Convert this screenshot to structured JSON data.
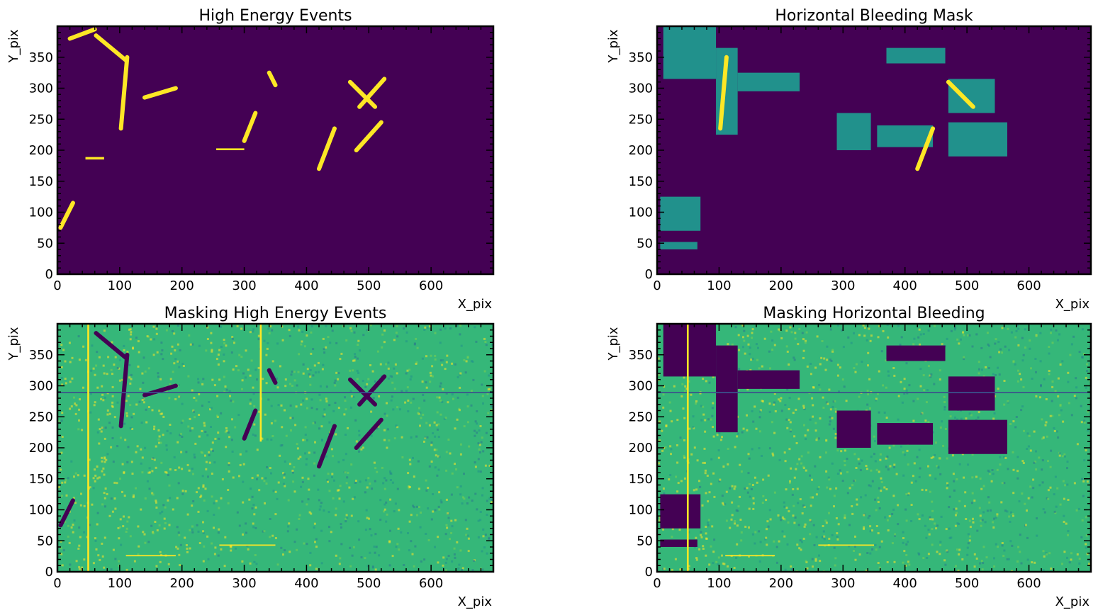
{
  "colors": {
    "viridis_dark": "#440154",
    "viridis_teal": "#21918c",
    "viridis_green": "#35b779",
    "viridis_yellow": "#fde725",
    "axes": "#000000"
  },
  "chart_data": [
    {
      "type": "heatmap",
      "title": "High Energy Events",
      "xlabel": "X_pix",
      "ylabel": "Y_pix",
      "xlim": [
        0,
        700
      ],
      "ylim": [
        0,
        400
      ],
      "xticks": [
        "0",
        "100",
        "200",
        "300",
        "400",
        "500",
        "600"
      ],
      "yticks": [
        "0",
        "50",
        "100",
        "150",
        "200",
        "250",
        "300",
        "350"
      ],
      "colormap": "viridis",
      "background": "#440154",
      "features": [
        {
          "kind": "line",
          "x1": 20,
          "y1": 380,
          "x2": 60,
          "y2": 395,
          "color": "#fde725"
        },
        {
          "kind": "line",
          "x1": 62,
          "y1": 385,
          "x2": 110,
          "y2": 345,
          "color": "#fde725"
        },
        {
          "kind": "line",
          "x1": 102,
          "y1": 235,
          "x2": 112,
          "y2": 350,
          "color": "#fde725"
        },
        {
          "kind": "line",
          "x1": 140,
          "y1": 285,
          "x2": 190,
          "y2": 300,
          "color": "#fde725"
        },
        {
          "kind": "line",
          "x1": 300,
          "y1": 215,
          "x2": 318,
          "y2": 260,
          "color": "#fde725"
        },
        {
          "kind": "line",
          "x1": 340,
          "y1": 325,
          "x2": 350,
          "y2": 305,
          "color": "#fde725"
        },
        {
          "kind": "line",
          "x1": 420,
          "y1": 170,
          "x2": 445,
          "y2": 235,
          "color": "#fde725"
        },
        {
          "kind": "line",
          "x1": 470,
          "y1": 310,
          "x2": 510,
          "y2": 270,
          "color": "#fde725"
        },
        {
          "kind": "line",
          "x1": 485,
          "y1": 270,
          "x2": 525,
          "y2": 315,
          "color": "#fde725"
        },
        {
          "kind": "line",
          "x1": 480,
          "y1": 200,
          "x2": 520,
          "y2": 245,
          "color": "#fde725"
        },
        {
          "kind": "line",
          "x1": 5,
          "y1": 75,
          "x2": 25,
          "y2": 115,
          "color": "#fde725"
        },
        {
          "kind": "rect",
          "x": 45,
          "y": 185,
          "w": 30,
          "h": 4,
          "color": "#fde725"
        },
        {
          "kind": "rect",
          "x": 255,
          "y": 200,
          "w": 45,
          "h": 3,
          "color": "#fde725"
        }
      ]
    },
    {
      "type": "heatmap",
      "title": "Horizontal Bleeding Mask",
      "xlabel": "X_pix",
      "ylabel": "Y_pix",
      "xlim": [
        0,
        700
      ],
      "ylim": [
        0,
        400
      ],
      "xticks": [
        "0",
        "100",
        "200",
        "300",
        "400",
        "500",
        "600"
      ],
      "yticks": [
        "0",
        "50",
        "100",
        "150",
        "200",
        "250",
        "300",
        "350"
      ],
      "colormap": "viridis",
      "background": "#440154",
      "features": [
        {
          "kind": "rect",
          "x": 10,
          "y": 315,
          "w": 85,
          "h": 85,
          "color": "#21918c"
        },
        {
          "kind": "rect",
          "x": 95,
          "y": 225,
          "w": 35,
          "h": 140,
          "color": "#21918c"
        },
        {
          "kind": "rect",
          "x": 130,
          "y": 295,
          "w": 100,
          "h": 30,
          "color": "#21918c"
        },
        {
          "kind": "rect",
          "x": 5,
          "y": 70,
          "w": 65,
          "h": 55,
          "color": "#21918c"
        },
        {
          "kind": "rect",
          "x": 5,
          "y": 40,
          "w": 60,
          "h": 12,
          "color": "#21918c"
        },
        {
          "kind": "rect",
          "x": 370,
          "y": 340,
          "w": 95,
          "h": 25,
          "color": "#21918c"
        },
        {
          "kind": "rect",
          "x": 355,
          "y": 205,
          "w": 90,
          "h": 35,
          "color": "#21918c"
        },
        {
          "kind": "rect",
          "x": 470,
          "y": 260,
          "w": 75,
          "h": 55,
          "color": "#21918c"
        },
        {
          "kind": "rect",
          "x": 470,
          "y": 190,
          "w": 95,
          "h": 55,
          "color": "#21918c"
        },
        {
          "kind": "rect",
          "x": 290,
          "y": 200,
          "w": 55,
          "h": 60,
          "color": "#21918c"
        },
        {
          "kind": "line",
          "x1": 102,
          "y1": 235,
          "x2": 112,
          "y2": 350,
          "color": "#fde725"
        },
        {
          "kind": "line",
          "x1": 470,
          "y1": 310,
          "x2": 510,
          "y2": 270,
          "color": "#fde725"
        },
        {
          "kind": "line",
          "x1": 420,
          "y1": 170,
          "x2": 445,
          "y2": 235,
          "color": "#fde725"
        }
      ]
    },
    {
      "type": "heatmap",
      "title": "Masking High Energy Events",
      "xlabel": "X_pix",
      "ylabel": "Y_pix",
      "xlim": [
        0,
        700
      ],
      "ylim": [
        0,
        400
      ],
      "xticks": [
        "0",
        "100",
        "200",
        "300",
        "400",
        "500",
        "600"
      ],
      "yticks": [
        "0",
        "50",
        "100",
        "150",
        "200",
        "250",
        "300",
        "350"
      ],
      "colormap": "viridis",
      "background": "#35b779",
      "features": [
        {
          "kind": "line",
          "x1": 62,
          "y1": 385,
          "x2": 110,
          "y2": 345,
          "color": "#440154"
        },
        {
          "kind": "line",
          "x1": 102,
          "y1": 235,
          "x2": 112,
          "y2": 350,
          "color": "#440154"
        },
        {
          "kind": "line",
          "x1": 140,
          "y1": 285,
          "x2": 190,
          "y2": 300,
          "color": "#440154"
        },
        {
          "kind": "line",
          "x1": 300,
          "y1": 215,
          "x2": 318,
          "y2": 260,
          "color": "#440154"
        },
        {
          "kind": "line",
          "x1": 340,
          "y1": 325,
          "x2": 350,
          "y2": 305,
          "color": "#440154"
        },
        {
          "kind": "line",
          "x1": 420,
          "y1": 170,
          "x2": 445,
          "y2": 235,
          "color": "#440154"
        },
        {
          "kind": "line",
          "x1": 470,
          "y1": 310,
          "x2": 510,
          "y2": 270,
          "color": "#440154"
        },
        {
          "kind": "line",
          "x1": 485,
          "y1": 270,
          "x2": 525,
          "y2": 315,
          "color": "#440154"
        },
        {
          "kind": "line",
          "x1": 480,
          "y1": 200,
          "x2": 520,
          "y2": 245,
          "color": "#440154"
        },
        {
          "kind": "line",
          "x1": 5,
          "y1": 75,
          "x2": 25,
          "y2": 115,
          "color": "#440154"
        },
        {
          "kind": "rect",
          "x": 0,
          "y": 288,
          "w": 700,
          "h": 2,
          "color": "#3b528b"
        },
        {
          "kind": "rect",
          "x": 48,
          "y": 0,
          "w": 3,
          "h": 400,
          "color": "#fde725"
        },
        {
          "kind": "rect",
          "x": 325,
          "y": 210,
          "w": 3,
          "h": 190,
          "color": "#fde725"
        },
        {
          "kind": "rect",
          "x": 260,
          "y": 42,
          "w": 90,
          "h": 2,
          "color": "#fde725"
        },
        {
          "kind": "rect",
          "x": 110,
          "y": 25,
          "w": 80,
          "h": 2,
          "color": "#fde725"
        }
      ]
    },
    {
      "type": "heatmap",
      "title": "Masking Horizontal Bleeding",
      "xlabel": "X_pix",
      "ylabel": "Y_pix",
      "xlim": [
        0,
        700
      ],
      "ylim": [
        0,
        400
      ],
      "xticks": [
        "0",
        "100",
        "200",
        "300",
        "400",
        "500",
        "600"
      ],
      "yticks": [
        "0",
        "50",
        "100",
        "150",
        "200",
        "250",
        "300",
        "350"
      ],
      "colormap": "viridis",
      "background": "#35b779",
      "features": [
        {
          "kind": "rect",
          "x": 10,
          "y": 315,
          "w": 85,
          "h": 85,
          "color": "#440154"
        },
        {
          "kind": "rect",
          "x": 95,
          "y": 225,
          "w": 35,
          "h": 140,
          "color": "#440154"
        },
        {
          "kind": "rect",
          "x": 130,
          "y": 295,
          "w": 100,
          "h": 30,
          "color": "#440154"
        },
        {
          "kind": "rect",
          "x": 5,
          "y": 70,
          "w": 65,
          "h": 55,
          "color": "#440154"
        },
        {
          "kind": "rect",
          "x": 5,
          "y": 40,
          "w": 60,
          "h": 12,
          "color": "#440154"
        },
        {
          "kind": "rect",
          "x": 370,
          "y": 340,
          "w": 95,
          "h": 25,
          "color": "#440154"
        },
        {
          "kind": "rect",
          "x": 355,
          "y": 205,
          "w": 90,
          "h": 35,
          "color": "#440154"
        },
        {
          "kind": "rect",
          "x": 470,
          "y": 260,
          "w": 75,
          "h": 55,
          "color": "#440154"
        },
        {
          "kind": "rect",
          "x": 470,
          "y": 190,
          "w": 95,
          "h": 55,
          "color": "#440154"
        },
        {
          "kind": "rect",
          "x": 290,
          "y": 200,
          "w": 55,
          "h": 60,
          "color": "#440154"
        },
        {
          "kind": "rect",
          "x": 0,
          "y": 288,
          "w": 700,
          "h": 2,
          "color": "#3b528b"
        },
        {
          "kind": "rect",
          "x": 48,
          "y": 0,
          "w": 3,
          "h": 400,
          "color": "#fde725"
        },
        {
          "kind": "rect",
          "x": 260,
          "y": 42,
          "w": 90,
          "h": 2,
          "color": "#fde725"
        },
        {
          "kind": "rect",
          "x": 110,
          "y": 25,
          "w": 80,
          "h": 2,
          "color": "#fde725"
        }
      ]
    }
  ]
}
